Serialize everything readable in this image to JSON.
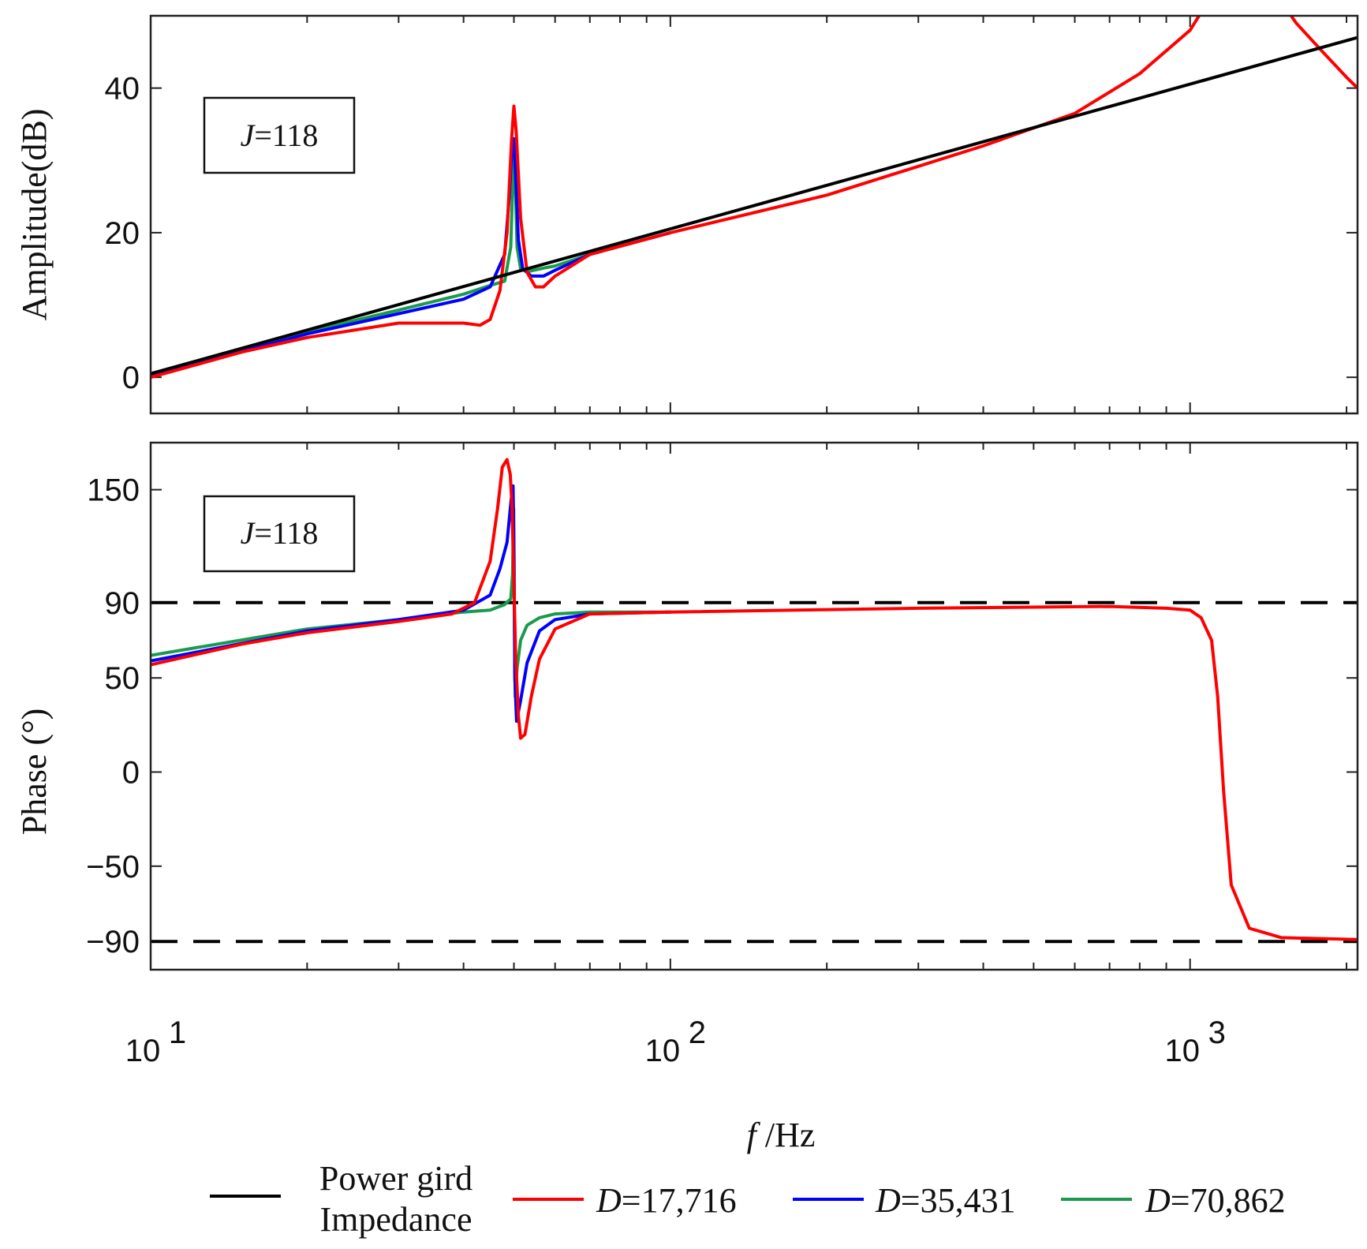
{
  "figure": {
    "type": "bode-plot"
  },
  "chart_data": [
    {
      "type": "line",
      "panel": "amplitude",
      "ylabel": "Amplitude(dB)",
      "xscale": "log",
      "xlim": [
        10,
        2100
      ],
      "ylim": [
        -5,
        50
      ],
      "yticks": [
        0,
        20,
        40
      ],
      "ytick_labels": [
        "0",
        "20",
        "40"
      ],
      "annotation": {
        "italic": "J",
        "rest": "=118"
      },
      "series": [
        {
          "name": "Power gird Impedance",
          "color": "#000000",
          "x": [
            10,
            2100
          ],
          "y": [
            0.5,
            47
          ]
        },
        {
          "name": "D=17,716",
          "color": "#ff0000",
          "x": [
            10,
            15,
            20,
            30,
            40,
            43,
            45,
            47,
            48.5,
            49.5,
            50,
            50.5,
            51.5,
            53,
            55,
            57,
            60,
            70,
            100,
            200,
            400,
            600,
            800,
            1000,
            1150,
            1400,
            1600,
            1800,
            2000,
            2100
          ],
          "y": [
            0,
            3.5,
            5.5,
            7.5,
            7.5,
            7.2,
            8,
            12,
            20,
            33,
            37.5,
            34,
            22,
            14.5,
            12.5,
            12.5,
            14,
            17,
            20,
            25.2,
            32,
            36.5,
            42,
            48,
            55,
            55,
            49,
            45,
            41.5,
            40
          ]
        },
        {
          "name": "D=35,431",
          "color": "#0000ff",
          "x": [
            10,
            20,
            30,
            40,
            45,
            48,
            49,
            49.5,
            50,
            50.5,
            51,
            52,
            54,
            57,
            60,
            70,
            100
          ],
          "y": [
            0.2,
            6,
            8.8,
            10.8,
            12.5,
            17,
            25,
            31,
            33,
            26,
            19,
            15,
            14,
            14,
            14.8,
            17,
            20
          ]
        },
        {
          "name": "D=70,862",
          "color": "#1a9b4b",
          "x": [
            10,
            20,
            30,
            40,
            45,
            48,
            49.3,
            49.7,
            50,
            50.3,
            50.7,
            51.5,
            53,
            57,
            60,
            70,
            100
          ],
          "y": [
            0.3,
            6.3,
            9.3,
            11.5,
            12.7,
            13.3,
            18,
            26,
            32.5,
            27,
            18,
            15,
            14.6,
            15.1,
            15.4,
            17,
            20
          ]
        }
      ]
    },
    {
      "type": "line",
      "panel": "phase",
      "ylabel": "Phase (°)",
      "xlabel_italic": "f",
      "xlabel_rest": " /Hz",
      "xscale": "log",
      "xlim": [
        10,
        2100
      ],
      "ylim": [
        -105,
        175
      ],
      "yticks": [
        -90,
        -50,
        0,
        50,
        90,
        150
      ],
      "ytick_labels": [
        "−90",
        "−50",
        "0",
        "50",
        "90",
        "150"
      ],
      "xtick_base": "10",
      "xtick_exponents": [
        "1",
        "2",
        "3"
      ],
      "xtick_values": [
        10,
        100,
        1000
      ],
      "annotation": {
        "italic": "J",
        "rest": "=118"
      },
      "reference_lines": [
        90,
        -90
      ],
      "series": [
        {
          "name": "D=17,716",
          "color": "#ff0000",
          "x": [
            10,
            15,
            20,
            30,
            38,
            42,
            45,
            46.5,
            47.5,
            48.5,
            49.2,
            49.6,
            50,
            50.4,
            51,
            51.5,
            52.5,
            54,
            56,
            60,
            70,
            100,
            300,
            700,
            900,
            1000,
            1050,
            1100,
            1130,
            1160,
            1200,
            1300,
            1500,
            2100
          ],
          "y": [
            57,
            68,
            74,
            80,
            84,
            90,
            112,
            140,
            162,
            166,
            158,
            140,
            100,
            60,
            30,
            18,
            20,
            40,
            60,
            76,
            84,
            85,
            87,
            88,
            87,
            86,
            82,
            70,
            40,
            -10,
            -60,
            -83,
            -88,
            -89
          ]
        },
        {
          "name": "D=35,431",
          "color": "#0000ff",
          "x": [
            10,
            20,
            30,
            40,
            45,
            47,
            48.5,
            49.4,
            49.8,
            50,
            50.2,
            50.6,
            51.5,
            53,
            56,
            60,
            70,
            100
          ],
          "y": [
            59,
            75,
            81,
            86,
            94,
            108,
            122,
            145,
            152,
            120,
            50,
            27,
            38,
            58,
            75,
            81,
            84,
            85
          ]
        },
        {
          "name": "D=70,862",
          "color": "#1a9b4b",
          "x": [
            10,
            20,
            30,
            40,
            45,
            48,
            49.3,
            49.7,
            49.95,
            50.1,
            50.3,
            50.7,
            51.5,
            53,
            56,
            60,
            70,
            100
          ],
          "y": [
            62,
            76,
            81,
            85,
            86,
            89,
            92,
            105,
            140,
            80,
            40,
            55,
            70,
            78,
            82,
            84,
            85,
            85
          ]
        }
      ]
    }
  ],
  "legend": {
    "placement": "bottom",
    "items": [
      {
        "label_line1": "Power gird",
        "label_line2": "Impedance",
        "color": "#000000"
      },
      {
        "italic": "D",
        "rest": "=17,716",
        "color": "#ff0000"
      },
      {
        "italic": "D",
        "rest": "=35,431",
        "color": "#0000ff"
      },
      {
        "italic": "D",
        "rest": "=70,862",
        "color": "#1a9b4b"
      }
    ]
  }
}
